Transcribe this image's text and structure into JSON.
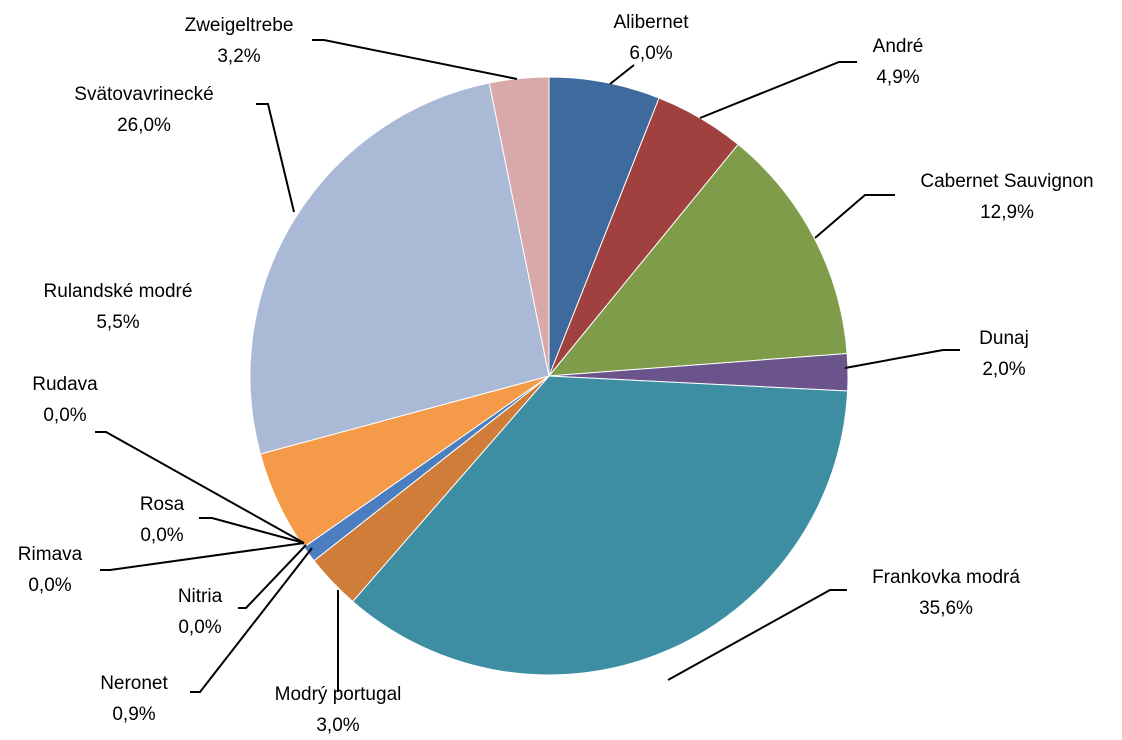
{
  "chart_data": {
    "type": "pie",
    "slices": [
      {
        "name": "Alibernet",
        "pct_label": "6,0%",
        "value": 6.0,
        "color": "#3F6A9D"
      },
      {
        "name": "André",
        "pct_label": "4,9%",
        "value": 4.9,
        "color": "#A04140"
      },
      {
        "name": "Cabernet Sauvignon",
        "pct_label": "12,9%",
        "value": 12.9,
        "color": "#7E9C4A"
      },
      {
        "name": "Dunaj",
        "pct_label": "2,0%",
        "value": 2.0,
        "color": "#6A548B"
      },
      {
        "name": "Frankovka modrá",
        "pct_label": "35,6%",
        "value": 35.6,
        "color": "#3D8EA3"
      },
      {
        "name": "Modrý portugal",
        "pct_label": "3,0%",
        "value": 3.0,
        "color": "#D17D3A"
      },
      {
        "name": "Neronet",
        "pct_label": "0,9%",
        "value": 0.9,
        "color": "#4A7EC1"
      },
      {
        "name": "Nitria",
        "pct_label": "0,0%",
        "value": 0.0,
        "color": "#7F7F7F"
      },
      {
        "name": "Rimava",
        "pct_label": "0,0%",
        "value": 0.0,
        "color": "#A5A5A5"
      },
      {
        "name": "Rosa",
        "pct_label": "0,0%",
        "value": 0.0,
        "color": "#BFBFBF"
      },
      {
        "name": "Rudava",
        "pct_label": "0,0%",
        "value": 0.0,
        "color": "#D9D9D9"
      },
      {
        "name": "Rulandské modré",
        "pct_label": "5,5%",
        "value": 5.5,
        "color": "#F59A48"
      },
      {
        "name": "Svätovavrinecké",
        "pct_label": "26,0%",
        "value": 26.0,
        "color": "#AAB9D6"
      },
      {
        "name": "Zweigeltrebe",
        "pct_label": "3,2%",
        "value": 3.2,
        "color": "#D8A9A8"
      }
    ]
  }
}
